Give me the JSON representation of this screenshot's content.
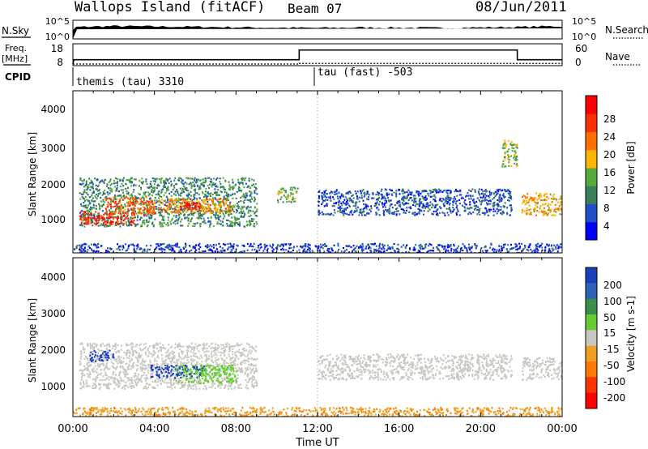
{
  "header": {
    "site": "Wallops Island (fitACF)",
    "beam": "Beam 07",
    "date": "08/Jun/2011"
  },
  "noise_panel": {
    "left_label": "N.Sky",
    "left_ticks": [
      "10^5",
      "10^0"
    ],
    "right_ticks": [
      "10^5",
      "10^0"
    ],
    "right_label": "N.Search"
  },
  "freq_panel": {
    "left_label_line1": "Freq.",
    "left_label_line2": "[MHz]",
    "left_ticks": [
      "18",
      "8"
    ],
    "right_ticks": [
      "60",
      "0"
    ],
    "right_label": "Nave"
  },
  "cpid_panel": {
    "label": "CPID",
    "segments": [
      {
        "name": "themis (tau) 3310",
        "start_hour": 0,
        "end_hour": 11.85
      },
      {
        "name": "tau (fast) -503",
        "start_hour": 11.85,
        "end_hour": 24
      }
    ]
  },
  "power_panel": {
    "ylabel": "Slant Range [km]",
    "yticks": [
      "4000",
      "3000",
      "2000",
      "1000"
    ],
    "colorbar_title": "Power [dB]",
    "colorbar_ticks": [
      "28",
      "24",
      "20",
      "16",
      "12",
      "8",
      "4"
    ]
  },
  "velocity_panel": {
    "ylabel": "Slant Range [km]",
    "yticks": [
      "4000",
      "3000",
      "2000",
      "1000"
    ],
    "colorbar_title": "Velocity [m s-1]",
    "colorbar_ticks": [
      "200",
      "100",
      "50",
      "15",
      "-15",
      "-50",
      "-100",
      "-200"
    ]
  },
  "xaxis": {
    "ticks": [
      "00:00",
      "04:00",
      "08:00",
      "12:00",
      "16:00",
      "20:00",
      "00:00"
    ],
    "label": "Time UT"
  },
  "colors": {
    "power_scale": [
      "#0000ff",
      "#2050c8",
      "#3a7f5a",
      "#55aa3c",
      "#ffb400",
      "#ff7000",
      "#ff3000",
      "#ff0000"
    ],
    "velocity_scale": [
      "#1a3fbf",
      "#2e62b8",
      "#3a8f4a",
      "#66cc33",
      "#c8c8c0",
      "#f0a020",
      "#ff7a00",
      "#ff3300",
      "#ff0000"
    ],
    "ground_scatter": "#c8c8c0"
  },
  "chart_data": [
    {
      "type": "line",
      "title": "",
      "xlabel": "Time UT",
      "ylabel": "N.Sky",
      "x_range_hours": [
        0,
        24
      ],
      "series": [
        {
          "name": "N.Sky",
          "x": [
            0,
            0.2,
            2,
            4,
            6,
            8,
            10,
            12,
            14,
            16,
            18,
            20,
            22,
            24
          ],
          "values": [
            1,
            1000,
            2000,
            1500,
            1200,
            800,
            600,
            500,
            700,
            600,
            500,
            700,
            1000,
            2000
          ]
        },
        {
          "name": "N.Search",
          "x": [
            0,
            24
          ],
          "values": [
            1,
            1
          ]
        }
      ]
    },
    {
      "type": "line",
      "title": "",
      "xlabel": "Time UT",
      "ylabel": "Freq. [MHz]",
      "ylim": [
        8,
        18
      ],
      "y2lim": [
        0,
        60
      ],
      "series": [
        {
          "name": "Freq.",
          "x": [
            0,
            0.05,
            11.1,
            11.1,
            21.8,
            21.8,
            24
          ],
          "values": [
            8,
            10.3,
            10.3,
            15.5,
            15.5,
            10.3,
            10.3
          ]
        },
        {
          "name": "Nave",
          "x": [
            0,
            11.1,
            11.1,
            24
          ],
          "values": [
            0,
            0,
            2,
            2
          ]
        }
      ]
    },
    {
      "type": "heatmap",
      "title": "",
      "xlabel": "Time UT",
      "ylabel": "Slant Range [km]",
      "quantity": "Power [dB]",
      "xlim": [
        0,
        24
      ],
      "ylim": [
        180,
        4500
      ],
      "clim": [
        0,
        30
      ],
      "regions": [
        {
          "t0": 0.3,
          "t1": 9.0,
          "r0": 900,
          "r1": 2200,
          "value": 10
        },
        {
          "t0": 0.3,
          "t1": 3.0,
          "r0": 950,
          "r1": 1300,
          "value": 26
        },
        {
          "t0": 1.5,
          "t1": 4.0,
          "r0": 1200,
          "r1": 1700,
          "value": 22
        },
        {
          "t0": 4.2,
          "t1": 7.8,
          "r0": 1250,
          "r1": 1650,
          "value": 20
        },
        {
          "t0": 5.2,
          "t1": 6.2,
          "r0": 1350,
          "r1": 1550,
          "value": 27
        },
        {
          "t0": 10.0,
          "t1": 11.0,
          "r0": 1550,
          "r1": 1950,
          "value": 13
        },
        {
          "t0": 12.0,
          "t1": 21.5,
          "r0": 1200,
          "r1": 1900,
          "value": 6
        },
        {
          "t0": 21.0,
          "t1": 21.8,
          "r0": 2500,
          "r1": 3200,
          "value": 14
        },
        {
          "t0": 22.0,
          "t1": 24.0,
          "r0": 1200,
          "r1": 1800,
          "value": 18
        },
        {
          "t0": 0,
          "t1": 24,
          "r0": 180,
          "r1": 450,
          "value": 5
        }
      ]
    },
    {
      "type": "heatmap",
      "title": "",
      "xlabel": "Time UT",
      "ylabel": "Slant Range [km]",
      "quantity": "Velocity [m s-1]",
      "xlim": [
        0,
        24
      ],
      "ylim": [
        180,
        4500
      ],
      "clim": [
        -200,
        200
      ],
      "regions": [
        {
          "t0": 0.3,
          "t1": 9.0,
          "r0": 950,
          "r1": 2200,
          "value": 0
        },
        {
          "t0": 0.8,
          "t1": 2.0,
          "r0": 1700,
          "r1": 2000,
          "value": 200
        },
        {
          "t0": 3.8,
          "t1": 6.5,
          "r0": 1250,
          "r1": 1600,
          "value": 180
        },
        {
          "t0": 5.0,
          "t1": 8.0,
          "r0": 1100,
          "r1": 1600,
          "value": 40
        },
        {
          "t0": 12.0,
          "t1": 21.5,
          "r0": 1200,
          "r1": 1900,
          "value": 0
        },
        {
          "t0": 22.0,
          "t1": 24.0,
          "r0": 1200,
          "r1": 1800,
          "value": 0
        },
        {
          "t0": 0,
          "t1": 24,
          "r0": 180,
          "r1": 450,
          "value": -60
        }
      ]
    }
  ]
}
